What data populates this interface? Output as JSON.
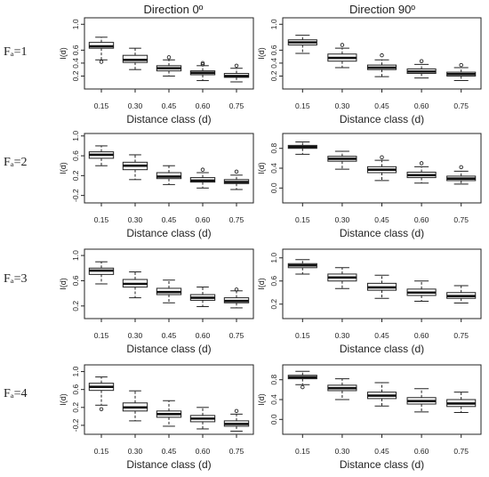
{
  "figure": {
    "col_titles": [
      "Direction 0º",
      "Direction 90º"
    ],
    "row_labels": [
      "Fₐ=1",
      "Fₐ=2",
      "Fₐ=3",
      "Fₐ=4"
    ]
  },
  "chart_data": [
    {
      "type": "box",
      "panel": "Fa=1 / Direction 0º",
      "title": "Direction 0º",
      "xlabel": "Distance class (d)",
      "ylabel": "I(d)",
      "categories": [
        "0.15",
        "0.30",
        "0.45",
        "0.60",
        "0.75"
      ],
      "yticks": [
        "0.2",
        "0.4",
        "0.6",
        "1.0"
      ],
      "ylim": [
        0.0,
        1.1
      ],
      "boxes": [
        {
          "whisker_low": 0.45,
          "q1": 0.63,
          "median": 0.66,
          "q3": 0.72,
          "whisker_high": 0.8,
          "outliers": [
            0.42
          ]
        },
        {
          "whisker_low": 0.3,
          "q1": 0.41,
          "median": 0.45,
          "q3": 0.52,
          "whisker_high": 0.63,
          "outliers": []
        },
        {
          "whisker_low": 0.2,
          "q1": 0.28,
          "median": 0.32,
          "q3": 0.36,
          "whisker_high": 0.45,
          "outliers": [
            0.49
          ]
        },
        {
          "whisker_low": 0.13,
          "q1": 0.22,
          "median": 0.25,
          "q3": 0.28,
          "whisker_high": 0.36,
          "outliers": [
            0.38,
            0.4
          ]
        },
        {
          "whisker_low": 0.11,
          "q1": 0.18,
          "median": 0.2,
          "q3": 0.24,
          "whisker_high": 0.32,
          "outliers": [
            0.36
          ]
        }
      ]
    },
    {
      "type": "box",
      "panel": "Fa=1 / Direction 90º",
      "title": "Direction 90º",
      "xlabel": "Distance class (d)",
      "ylabel": "I(d)",
      "categories": [
        "0.15",
        "0.30",
        "0.45",
        "0.60",
        "0.75"
      ],
      "yticks": [
        "0.2",
        "0.4",
        "0.6",
        "1.0"
      ],
      "ylim": [
        0.0,
        1.1
      ],
      "boxes": [
        {
          "whisker_low": 0.55,
          "q1": 0.68,
          "median": 0.72,
          "q3": 0.76,
          "whisker_high": 0.83,
          "outliers": []
        },
        {
          "whisker_low": 0.33,
          "q1": 0.43,
          "median": 0.48,
          "q3": 0.54,
          "whisker_high": 0.63,
          "outliers": [
            0.68
          ]
        },
        {
          "whisker_low": 0.19,
          "q1": 0.3,
          "median": 0.33,
          "q3": 0.37,
          "whisker_high": 0.45,
          "outliers": [
            0.52
          ]
        },
        {
          "whisker_low": 0.17,
          "q1": 0.24,
          "median": 0.27,
          "q3": 0.31,
          "whisker_high": 0.38,
          "outliers": [
            0.43
          ]
        },
        {
          "whisker_low": 0.13,
          "q1": 0.2,
          "median": 0.23,
          "q3": 0.26,
          "whisker_high": 0.33,
          "outliers": [
            0.37
          ]
        }
      ]
    },
    {
      "type": "box",
      "panel": "Fa=2 / Direction 0º",
      "xlabel": "Distance class (d)",
      "ylabel": "I(d)",
      "categories": [
        "0.15",
        "0.30",
        "0.45",
        "0.60",
        "0.75"
      ],
      "yticks": [
        "-0.2",
        "0.2",
        "0.6",
        "1.0"
      ],
      "ylim": [
        -0.35,
        1.05
      ],
      "boxes": [
        {
          "whisker_low": 0.4,
          "q1": 0.55,
          "median": 0.62,
          "q3": 0.68,
          "whisker_high": 0.8,
          "outliers": []
        },
        {
          "whisker_low": 0.12,
          "q1": 0.32,
          "median": 0.4,
          "q3": 0.47,
          "whisker_high": 0.62,
          "outliers": []
        },
        {
          "whisker_low": 0.02,
          "q1": 0.14,
          "median": 0.18,
          "q3": 0.26,
          "whisker_high": 0.4,
          "outliers": []
        },
        {
          "whisker_low": -0.05,
          "q1": 0.07,
          "median": 0.1,
          "q3": 0.16,
          "whisker_high": 0.26,
          "outliers": [
            0.32
          ]
        },
        {
          "whisker_low": -0.08,
          "q1": 0.04,
          "median": 0.07,
          "q3": 0.12,
          "whisker_high": 0.21,
          "outliers": [
            0.28
          ]
        }
      ]
    },
    {
      "type": "box",
      "panel": "Fa=2 / Direction 90º",
      "xlabel": "Distance class (d)",
      "ylabel": "I(d)",
      "categories": [
        "0.15",
        "0.30",
        "0.45",
        "0.60",
        "0.75"
      ],
      "yticks": [
        "0.0",
        "0.4",
        "0.8"
      ],
      "ylim": [
        -0.3,
        1.1
      ],
      "boxes": [
        {
          "whisker_low": 0.68,
          "q1": 0.8,
          "median": 0.83,
          "q3": 0.86,
          "whisker_high": 0.93,
          "outliers": []
        },
        {
          "whisker_low": 0.38,
          "q1": 0.54,
          "median": 0.59,
          "q3": 0.64,
          "whisker_high": 0.74,
          "outliers": []
        },
        {
          "whisker_low": 0.15,
          "q1": 0.31,
          "median": 0.37,
          "q3": 0.43,
          "whisker_high": 0.56,
          "outliers": [
            0.62
          ]
        },
        {
          "whisker_low": 0.1,
          "q1": 0.21,
          "median": 0.26,
          "q3": 0.32,
          "whisker_high": 0.43,
          "outliers": [
            0.5
          ]
        },
        {
          "whisker_low": 0.08,
          "q1": 0.15,
          "median": 0.19,
          "q3": 0.24,
          "whisker_high": 0.34,
          "outliers": [
            0.42
          ]
        }
      ]
    },
    {
      "type": "box",
      "panel": "Fa=3 / Direction 0º",
      "xlabel": "Distance class (d)",
      "ylabel": "I(d)",
      "categories": [
        "0.15",
        "0.30",
        "0.45",
        "0.60",
        "0.75"
      ],
      "yticks": [
        "0.2",
        "0.6",
        "1.0"
      ],
      "ylim": [
        0.0,
        1.1
      ],
      "boxes": [
        {
          "whisker_low": 0.55,
          "q1": 0.7,
          "median": 0.76,
          "q3": 0.8,
          "whisker_high": 0.9,
          "outliers": []
        },
        {
          "whisker_low": 0.33,
          "q1": 0.5,
          "median": 0.55,
          "q3": 0.62,
          "whisker_high": 0.74,
          "outliers": []
        },
        {
          "whisker_low": 0.25,
          "q1": 0.38,
          "median": 0.42,
          "q3": 0.48,
          "whisker_high": 0.61,
          "outliers": []
        },
        {
          "whisker_low": 0.19,
          "q1": 0.29,
          "median": 0.33,
          "q3": 0.38,
          "whisker_high": 0.5,
          "outliers": []
        },
        {
          "whisker_low": 0.17,
          "q1": 0.25,
          "median": 0.28,
          "q3": 0.33,
          "whisker_high": 0.44,
          "outliers": [
            0.46
          ]
        }
      ]
    },
    {
      "type": "box",
      "panel": "Fa=3 / Direction 90º",
      "xlabel": "Distance class (d)",
      "ylabel": "I(d)",
      "categories": [
        "0.15",
        "0.30",
        "0.45",
        "0.60",
        "0.75"
      ],
      "yticks": [
        "0.2",
        "0.6",
        "1.0"
      ],
      "ylim": [
        -0.05,
        1.15
      ],
      "boxes": [
        {
          "whisker_low": 0.72,
          "q1": 0.83,
          "median": 0.87,
          "q3": 0.9,
          "whisker_high": 0.97,
          "outliers": []
        },
        {
          "whisker_low": 0.47,
          "q1": 0.6,
          "median": 0.66,
          "q3": 0.72,
          "whisker_high": 0.83,
          "outliers": []
        },
        {
          "whisker_low": 0.3,
          "q1": 0.44,
          "median": 0.49,
          "q3": 0.56,
          "whisker_high": 0.7,
          "outliers": []
        },
        {
          "whisker_low": 0.25,
          "q1": 0.35,
          "median": 0.4,
          "q3": 0.46,
          "whisker_high": 0.6,
          "outliers": []
        },
        {
          "whisker_low": 0.22,
          "q1": 0.3,
          "median": 0.34,
          "q3": 0.4,
          "whisker_high": 0.52,
          "outliers": []
        }
      ]
    },
    {
      "type": "box",
      "panel": "Fa=4 / Direction 0º",
      "xlabel": "Distance class (d)",
      "ylabel": "I(d)",
      "categories": [
        "0.15",
        "0.30",
        "0.45",
        "0.60",
        "0.75"
      ],
      "yticks": [
        "-0.2",
        "0.2",
        "0.6",
        "1.0"
      ],
      "ylim": [
        -0.4,
        1.15
      ],
      "boxes": [
        {
          "whisker_low": 0.25,
          "q1": 0.58,
          "median": 0.66,
          "q3": 0.74,
          "whisker_high": 0.88,
          "outliers": [
            0.16
          ]
        },
        {
          "whisker_low": -0.1,
          "q1": 0.12,
          "median": 0.2,
          "q3": 0.3,
          "whisker_high": 0.57,
          "outliers": []
        },
        {
          "whisker_low": -0.22,
          "q1": -0.02,
          "median": 0.05,
          "q3": 0.12,
          "whisker_high": 0.35,
          "outliers": []
        },
        {
          "whisker_low": -0.28,
          "q1": -0.12,
          "median": -0.05,
          "q3": 0.02,
          "whisker_high": 0.2,
          "outliers": []
        },
        {
          "whisker_low": -0.33,
          "q1": -0.22,
          "median": -0.17,
          "q3": -0.1,
          "whisker_high": 0.05,
          "outliers": [
            0.12
          ]
        }
      ]
    },
    {
      "type": "box",
      "panel": "Fa=4 / Direction 90º",
      "xlabel": "Distance class (d)",
      "ylabel": "I(d)",
      "categories": [
        "0.15",
        "0.30",
        "0.45",
        "0.60",
        "0.75"
      ],
      "yticks": [
        "0.0",
        "0.4",
        "0.8"
      ],
      "ylim": [
        -0.3,
        1.1
      ],
      "boxes": [
        {
          "whisker_low": 0.7,
          "q1": 0.82,
          "median": 0.85,
          "q3": 0.89,
          "whisker_high": 0.97,
          "outliers": [
            0.65
          ]
        },
        {
          "whisker_low": 0.4,
          "q1": 0.58,
          "median": 0.63,
          "q3": 0.69,
          "whisker_high": 0.82,
          "outliers": []
        },
        {
          "whisker_low": 0.27,
          "q1": 0.42,
          "median": 0.48,
          "q3": 0.55,
          "whisker_high": 0.74,
          "outliers": []
        },
        {
          "whisker_low": 0.15,
          "q1": 0.31,
          "median": 0.37,
          "q3": 0.44,
          "whisker_high": 0.62,
          "outliers": []
        },
        {
          "whisker_low": 0.14,
          "q1": 0.26,
          "median": 0.32,
          "q3": 0.4,
          "whisker_high": 0.55,
          "outliers": []
        }
      ]
    }
  ]
}
